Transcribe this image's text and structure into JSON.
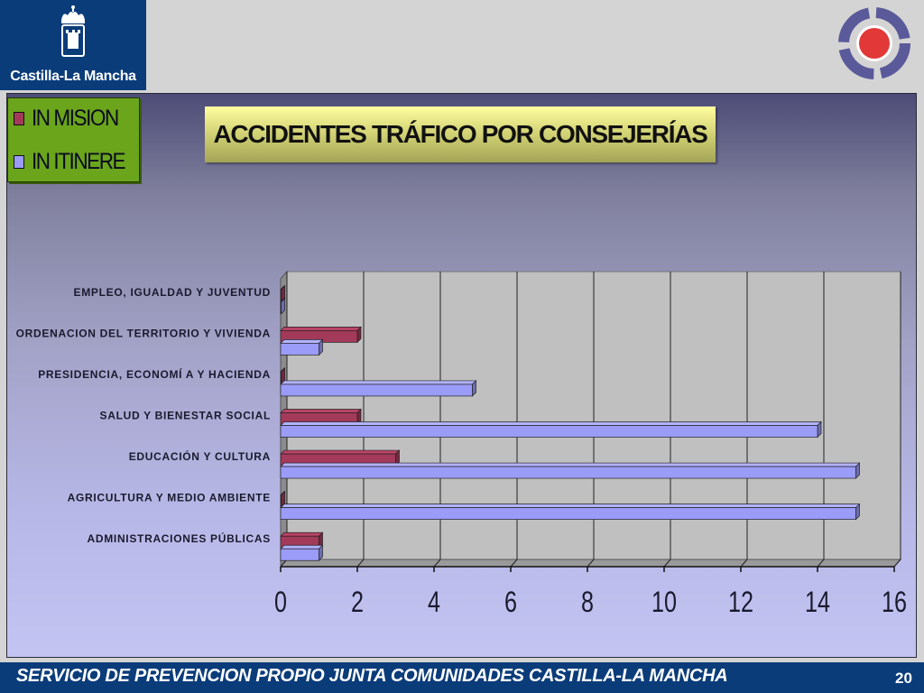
{
  "branding": {
    "logo_text": "Castilla-La Mancha",
    "colors": {
      "navy": "#0b3c7a",
      "legend_bg": "#6aa51c",
      "target_red": "#e23838",
      "target_ring": "#5a5a9a"
    }
  },
  "footer": {
    "text": "SERVICIO DE PREVENCION PROPIO JUNTA COMUNIDADES CASTILLA-LA MANCHA",
    "page_number": "20"
  },
  "chart_data": {
    "type": "bar",
    "orientation": "horizontal",
    "title": "ACCIDENTES TRÁFICO POR CONSEJERÍAS",
    "categories": [
      "EMPLEO, IGUALDAD Y JUVENTUD",
      "ORDENACION DEL TERRITORIO Y VIVIENDA",
      "PRESIDENCIA, ECONOMÍ A Y HACIENDA",
      "SALUD Y BIENESTAR SOCIAL",
      "EDUCACIÓN Y CULTURA",
      "AGRICULTURA Y MEDIO AMBIENTE",
      "ADMINISTRACIONES PÚBLICAS"
    ],
    "series": [
      {
        "name": "IN MISION",
        "values": [
          0,
          2,
          0,
          2,
          3,
          0,
          1
        ],
        "color": "#a33a5a"
      },
      {
        "name": "IN ITINERE",
        "values": [
          0,
          1,
          5,
          14,
          15,
          15,
          1
        ],
        "color": "#9b9bf8"
      }
    ],
    "xlim": [
      0,
      16
    ],
    "x_ticks": [
      "0",
      "2",
      "4",
      "6",
      "8",
      "10",
      "12",
      "14",
      "16"
    ],
    "grid": true,
    "legend_position": "top-left",
    "three_d": true
  }
}
